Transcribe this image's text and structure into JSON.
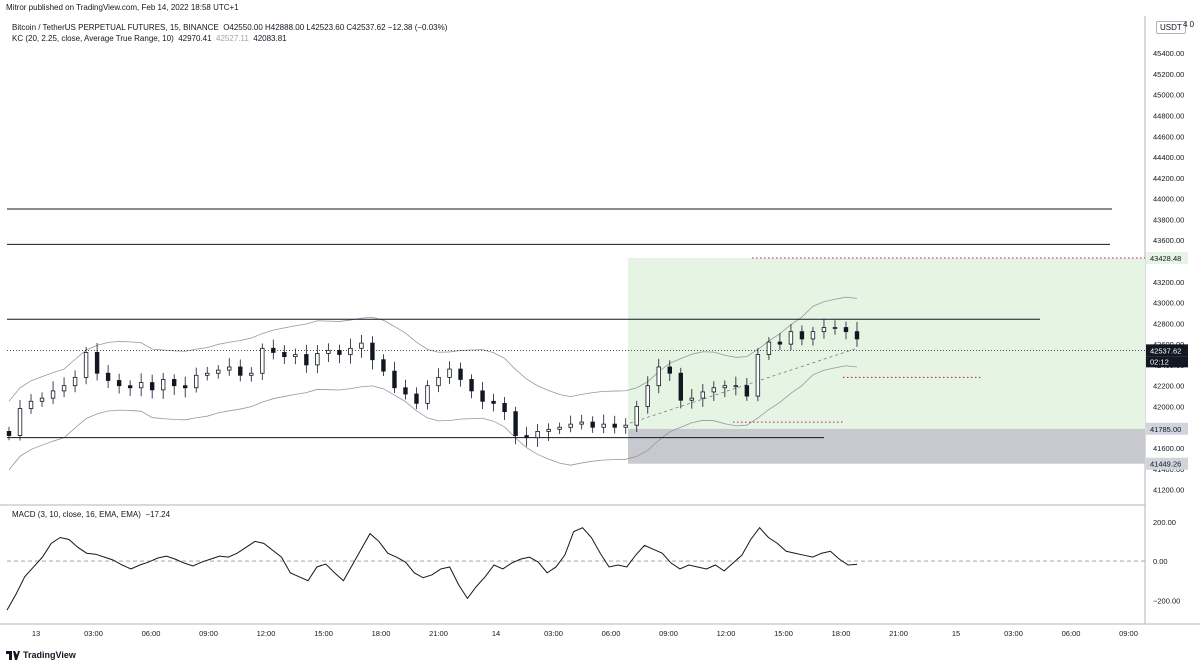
{
  "header": {
    "published": "Mitror published on TradingView.com, Feb 14, 2022 18:58 UTC+1"
  },
  "legend": {
    "symbol": "Bitcoin / TetherUS PERPETUAL FUTURES, 15, BINANCE",
    "ohlc": "O42550.00  H42888.00  L42523.60  C42537.62  −12.38 (−0.03%)",
    "kc_label": "KC (20, 2.25, close, Average True Range, 10)",
    "kc_upper": "42970.41",
    "kc_mid": "42527.11",
    "kc_lower": "42083.81",
    "macd_label": "MACD (3, 10, close, 16, EMA, EMA)",
    "macd_value": "−17.24"
  },
  "axis": {
    "currency": "USDT",
    "corner_number": "4 0"
  },
  "footer": {
    "brand": "TradingView"
  },
  "colors": {
    "up": "#131722",
    "down": "#131722",
    "long_profit": "#e6f4e4",
    "long_risk": "#c8c9ce",
    "price_tag": "#131722"
  },
  "chart_data": [
    {
      "type": "candlestick",
      "title": "Bitcoin / TetherUS PERPETUAL FUTURES, 15, BINANCE",
      "ylim": [
        41100,
        45700
      ],
      "y_ticks": [
        "41200.00",
        "41400.00",
        "41600.00",
        "41800.00",
        "42000.00",
        "42200.00",
        "42400.00",
        "42600.00",
        "42800.00",
        "43000.00",
        "43200.00",
        "43400.00",
        "43600.00",
        "43800.00",
        "44000.00",
        "44200.00",
        "44400.00",
        "44600.00",
        "44800.00",
        "45000.00",
        "45200.00",
        "45400.00"
      ],
      "x_ticks": [
        "13",
        "03:00",
        "06:00",
        "09:00",
        "12:00",
        "15:00",
        "18:00",
        "21:00",
        "14",
        "03:00",
        "06:00",
        "09:00",
        "12:00",
        "15:00",
        "18:00",
        "21:00",
        "15",
        "03:00",
        "06:00",
        "09:00"
      ],
      "candle_close_path": [
        41720,
        41980,
        42050,
        42080,
        42150,
        42200,
        42280,
        42520,
        42320,
        42250,
        42200,
        42180,
        42230,
        42160,
        42260,
        42200,
        42180,
        42300,
        42320,
        42350,
        42380,
        42300,
        42320,
        42560,
        42520,
        42480,
        42500,
        42400,
        42510,
        42540,
        42500,
        42560,
        42610,
        42450,
        42340,
        42180,
        42120,
        42030,
        42200,
        42280,
        42360,
        42260,
        42150,
        42050,
        42030,
        41950,
        41720,
        41700,
        41760,
        41780,
        41800,
        41830,
        41850,
        41800,
        41830,
        41800,
        41820,
        42000,
        42200,
        42380,
        42320,
        42060,
        42080,
        42140,
        42180,
        42200,
        42200,
        42100,
        42500,
        42620,
        42600,
        42720,
        42650,
        42720,
        42760,
        42760,
        42720,
        42650
      ],
      "current_price": "42537.62",
      "countdown": "02:12",
      "horizontal_lines": [
        43900,
        43560,
        42840,
        41700
      ],
      "dotted_lines": [
        43428.48,
        42540,
        42280,
        41850
      ],
      "price_tags": [
        "43428.48",
        "42537.62",
        "41785.00",
        "41449.26"
      ],
      "long_position": {
        "target": 43428.48,
        "entry": 41785.0,
        "stop": 41449.26
      }
    },
    {
      "type": "line",
      "title": "MACD (3, 10, close, 16, EMA, EMA)",
      "ylim": [
        -300,
        260
      ],
      "y_ticks": [
        "200.00",
        "0.00",
        "−200.00"
      ],
      "values": [
        -250,
        -170,
        -80,
        -30,
        20,
        90,
        120,
        110,
        70,
        40,
        35,
        20,
        5,
        -20,
        -40,
        -20,
        -5,
        15,
        25,
        10,
        -10,
        -25,
        -5,
        10,
        25,
        20,
        40,
        70,
        100,
        90,
        55,
        20,
        -60,
        -80,
        -100,
        -30,
        -15,
        -60,
        -100,
        -20,
        60,
        140,
        100,
        40,
        20,
        -5,
        -60,
        -85,
        -70,
        -40,
        -30,
        -120,
        -190,
        -130,
        -80,
        -20,
        -40,
        -10,
        10,
        20,
        -5,
        -60,
        -30,
        30,
        150,
        170,
        120,
        40,
        -30,
        -20,
        -30,
        30,
        80,
        60,
        40,
        -10,
        -40,
        -20,
        -30,
        -40,
        -20,
        -50,
        -10,
        30,
        110,
        170,
        120,
        90,
        50,
        40,
        30,
        20,
        40,
        50,
        10,
        -20,
        -17
      ],
      "zero_line": 0
    }
  ]
}
